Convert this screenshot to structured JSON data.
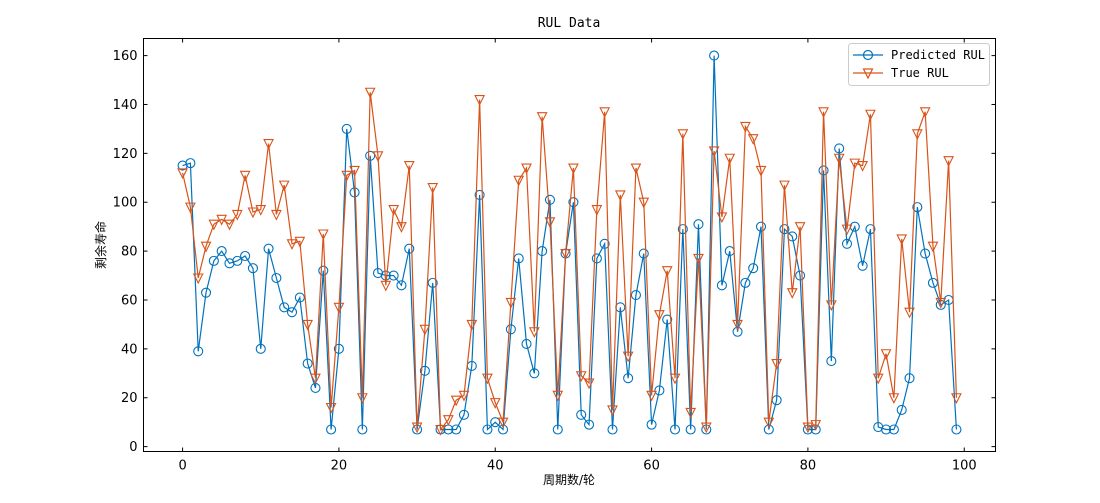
{
  "chart_data": {
    "type": "line",
    "title": "RUL Data",
    "xlabel": "周期数/轮",
    "ylabel": "剩余寿命",
    "xlim": [
      -5,
      104
    ],
    "ylim": [
      -2,
      167
    ],
    "xticks": [
      0,
      20,
      40,
      60,
      80,
      100
    ],
    "yticks": [
      0,
      20,
      40,
      60,
      80,
      100,
      120,
      140,
      160
    ],
    "legend_position": "top-right",
    "series": [
      {
        "name": "Predicted RUL",
        "color": "#0072BD",
        "marker": "circle",
        "values": [
          115,
          116,
          39,
          63,
          76,
          80,
          75,
          76,
          78,
          73,
          40,
          81,
          69,
          57,
          55,
          61,
          34,
          24,
          72,
          7,
          40,
          130,
          104,
          7,
          119,
          71,
          70,
          70,
          66,
          81,
          7,
          31,
          67,
          7,
          7,
          7,
          13,
          33,
          103,
          7,
          10,
          7,
          48,
          77,
          42,
          30,
          80,
          101,
          7,
          79,
          100,
          13,
          9,
          77,
          83,
          7,
          57,
          28,
          62,
          79,
          9,
          23,
          52,
          7,
          89,
          7,
          91,
          7,
          160,
          66,
          80,
          47,
          67,
          73,
          90,
          7,
          19,
          89,
          86,
          70,
          7,
          7,
          113,
          35,
          122,
          83,
          90,
          74,
          89,
          8,
          7,
          7,
          15,
          28,
          98,
          79,
          67,
          58,
          60,
          7
        ]
      },
      {
        "name": "True RUL",
        "color": "#D95319",
        "marker": "triangle-down",
        "values": [
          112,
          98,
          69,
          82,
          91,
          93,
          91,
          95,
          111,
          96,
          97,
          124,
          95,
          107,
          83,
          84,
          50,
          28,
          87,
          16,
          57,
          111,
          113,
          20,
          145,
          119,
          66,
          97,
          90,
          115,
          8,
          48,
          106,
          7,
          11,
          19,
          21,
          50,
          142,
          28,
          18,
          10,
          59,
          109,
          114,
          47,
          135,
          92,
          21,
          79,
          114,
          29,
          26,
          97,
          137,
          15,
          103,
          37,
          114,
          100,
          21,
          54,
          72,
          28,
          128,
          14,
          77,
          8,
          121,
          94,
          118,
          50,
          131,
          126,
          113,
          10,
          34,
          107,
          63,
          90,
          8,
          9,
          137,
          58,
          118,
          89,
          116,
          115,
          136,
          28,
          38,
          20,
          85,
          55,
          128,
          137,
          82,
          59,
          117,
          20
        ]
      }
    ]
  }
}
